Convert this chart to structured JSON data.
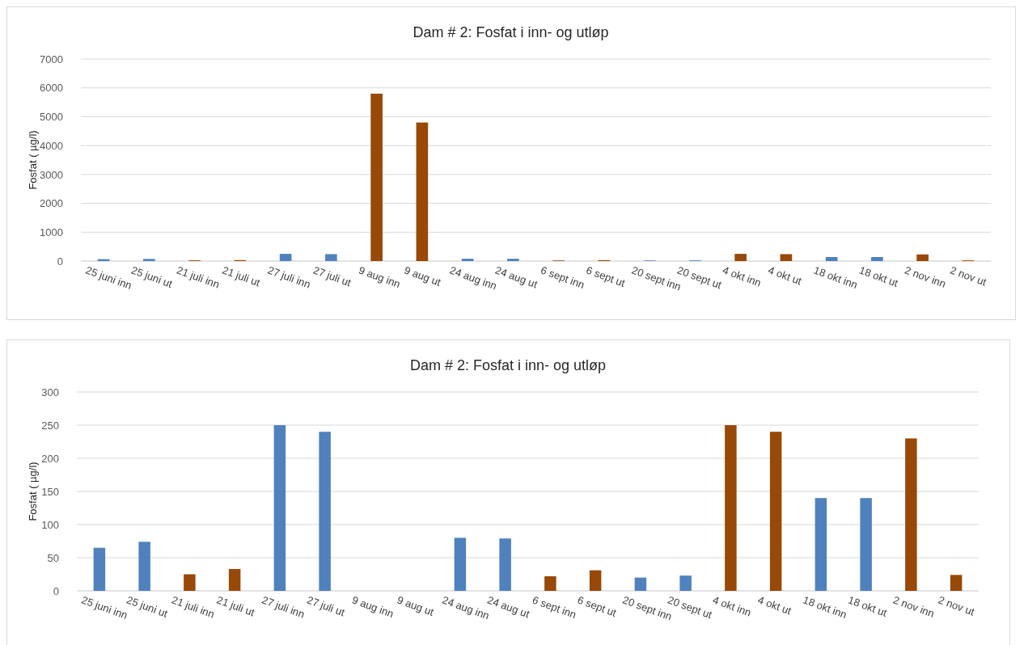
{
  "chart_data": [
    {
      "type": "bar",
      "title": "Dam # 2: Fosfat i inn- og utløp",
      "ylabel": "Fosfat ( µg/l)",
      "categories": [
        "25 juni inn",
        "25 juni ut",
        "21 juli inn",
        "21 juli ut",
        "27 juli inn",
        "27 juli ut",
        "9 aug inn",
        "9 aug ut",
        "24 aug inn",
        "24 aug ut",
        "6 sept inn",
        "6 sept ut",
        "20 sept inn",
        "20 sept ut",
        "4 okt inn",
        "4 okt ut",
        "18 okt inn",
        "18 okt ut",
        "2 nov inn",
        "2 nov ut"
      ],
      "values": [
        65,
        74,
        25,
        33,
        250,
        240,
        5800,
        4800,
        80,
        79,
        22,
        31,
        20,
        23,
        250,
        240,
        140,
        140,
        230,
        24
      ],
      "colors": [
        "#4f81bd",
        "#4f81bd",
        "#984807",
        "#984807",
        "#4f81bd",
        "#4f81bd",
        "#984807",
        "#984807",
        "#4f81bd",
        "#4f81bd",
        "#984807",
        "#984807",
        "#4f81bd",
        "#4f81bd",
        "#984807",
        "#984807",
        "#4f81bd",
        "#4f81bd",
        "#984807",
        "#984807"
      ],
      "ylim": [
        0,
        7000
      ],
      "yticks": [
        0,
        1000,
        2000,
        3000,
        4000,
        5000,
        6000,
        7000
      ],
      "grid": "y"
    },
    {
      "type": "bar",
      "title": "Dam # 2: Fosfat i inn- og utløp",
      "ylabel": "Fosfat ( µg/l)",
      "categories": [
        "25 juni inn",
        "25 juni ut",
        "21 juli inn",
        "21 juli ut",
        "27 juli inn",
        "27 juli ut",
        "9 aug inn",
        "9 aug ut",
        "24 aug inn",
        "24 aug ut",
        "6 sept inn",
        "6 sept ut",
        "20 sept inn",
        "20 sept ut",
        "4 okt inn",
        "4 okt ut",
        "18 okt inn",
        "18 okt ut",
        "2 nov inn",
        "2 nov ut"
      ],
      "values": [
        65,
        74,
        25,
        33,
        250,
        240,
        null,
        null,
        80,
        79,
        22,
        31,
        20,
        23,
        250,
        240,
        140,
        140,
        230,
        24
      ],
      "colors": [
        "#4f81bd",
        "#4f81bd",
        "#984807",
        "#984807",
        "#4f81bd",
        "#4f81bd",
        null,
        null,
        "#4f81bd",
        "#4f81bd",
        "#984807",
        "#984807",
        "#4f81bd",
        "#4f81bd",
        "#984807",
        "#984807",
        "#4f81bd",
        "#4f81bd",
        "#984807",
        "#984807"
      ],
      "ylim": [
        0,
        300
      ],
      "yticks": [
        0,
        50,
        100,
        150,
        200,
        250,
        300
      ],
      "grid": "y"
    }
  ]
}
